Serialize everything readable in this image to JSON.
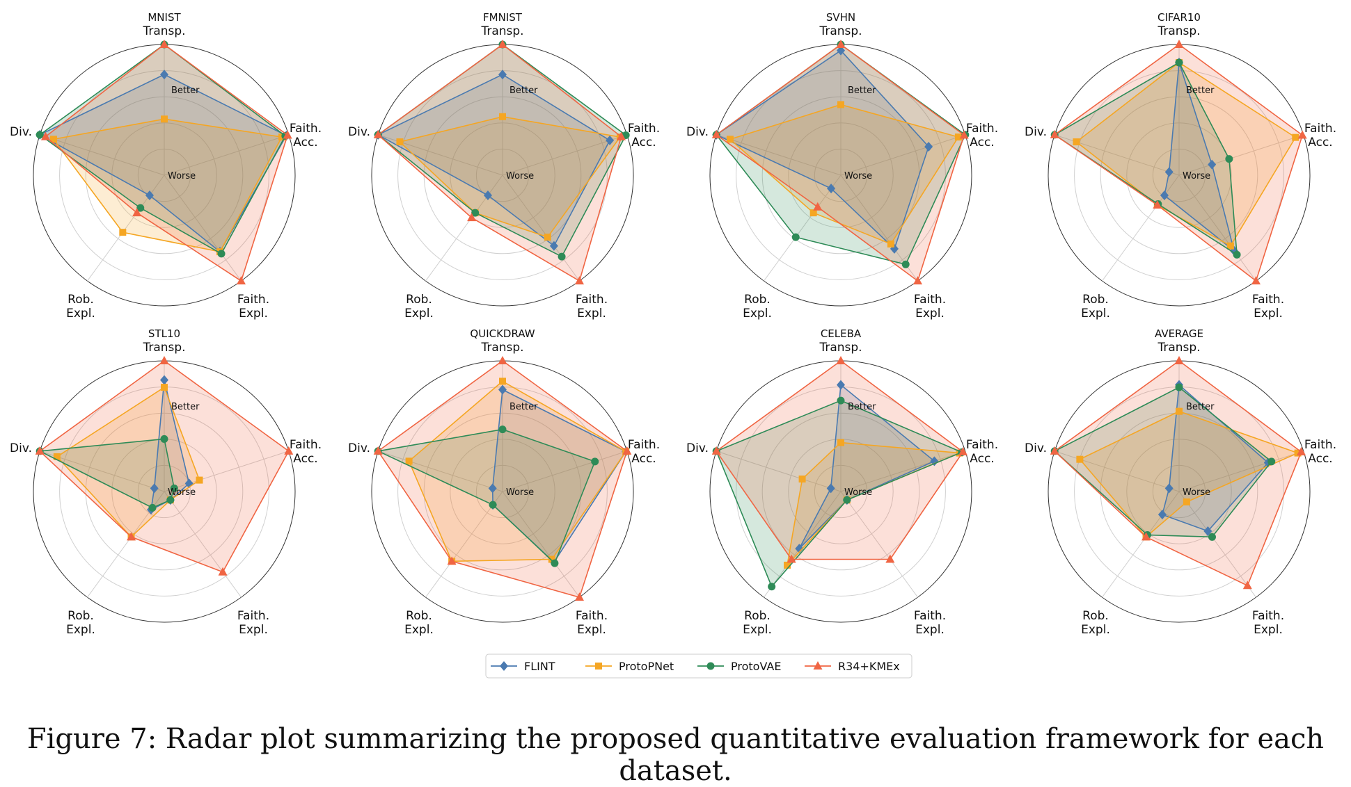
{
  "axes": [
    "Transp.",
    "Faith.\nAcc.",
    "Faith.\nExpl.",
    "Rob.\nExpl.",
    "Div."
  ],
  "better_label": "Better",
  "worse_label": "Worse",
  "series": [
    {
      "name": "FLINT",
      "color": "#4a7ab0",
      "marker": "diamond"
    },
    {
      "name": "ProtoPNet",
      "color": "#f5a623",
      "marker": "square"
    },
    {
      "name": "ProtoVAE",
      "color": "#2e8b57",
      "marker": "circle"
    },
    {
      "name": "R34+KMEx",
      "color": "#f06543",
      "marker": "triangle"
    }
  ],
  "chart_data": [
    {
      "type": "radar",
      "title": "MNIST",
      "range": [
        0,
        1
      ],
      "values": {
        "FLINT": [
          0.75,
          0.98,
          0.7,
          0.12,
          1.0
        ],
        "ProtoPNet": [
          0.38,
          0.94,
          0.7,
          0.5,
          0.88
        ],
        "ProtoVAE": [
          1.0,
          0.97,
          0.72,
          0.25,
          1.0
        ],
        "R34+KMEx": [
          1.0,
          0.99,
          1.0,
          0.3,
          0.95
        ]
      }
    },
    {
      "type": "radar",
      "title": "FMNIST",
      "range": [
        0,
        1
      ],
      "values": {
        "FLINT": [
          0.75,
          0.85,
          0.64,
          0.12,
          1.0
        ],
        "ProtoPNet": [
          0.4,
          0.94,
          0.55,
          0.3,
          0.81
        ],
        "ProtoVAE": [
          1.0,
          0.99,
          0.75,
          0.3,
          1.0
        ],
        "R34+KMEx": [
          1.0,
          0.95,
          1.0,
          0.35,
          1.0
        ]
      }
    },
    {
      "type": "radar",
      "title": "SVHN",
      "range": [
        0,
        1
      ],
      "values": {
        "FLINT": [
          0.95,
          0.68,
          0.67,
          0.05,
          1.0
        ],
        "ProtoPNet": [
          0.5,
          0.94,
          0.62,
          0.3,
          0.88
        ],
        "ProtoVAE": [
          1.0,
          1.0,
          0.83,
          0.55,
          1.0
        ],
        "R34+KMEx": [
          1.0,
          0.99,
          1.0,
          0.24,
          1.0
        ]
      }
    },
    {
      "type": "radar",
      "title": "CIFAR10",
      "range": [
        0,
        1
      ],
      "values": {
        "FLINT": [
          0.85,
          0.2,
          0.69,
          0.12,
          0.0
        ],
        "ProtoPNet": [
          0.85,
          0.93,
          0.64,
          0.22,
          0.81
        ],
        "ProtoVAE": [
          0.85,
          0.35,
          0.73,
          0.21,
          1.0
        ],
        "R34+KMEx": [
          1.0,
          0.99,
          1.0,
          0.22,
          1.0
        ]
      }
    },
    {
      "type": "radar",
      "title": "STL10",
      "range": [
        0,
        1
      ],
      "values": {
        "FLINT": [
          0.84,
          0.13,
          0.0,
          0.1,
          0.0
        ],
        "ProtoPNet": [
          0.78,
          0.22,
          0.0,
          0.38,
          0.85
        ],
        "ProtoVAE": [
          0.35,
          0.0,
          0.0,
          0.08,
          1.0
        ],
        "R34+KMEx": [
          1.0,
          1.0,
          0.74,
          0.38,
          1.0
        ]
      }
    },
    {
      "type": "radar",
      "title": "QUICKDRAW",
      "range": [
        0,
        1
      ],
      "values": {
        "FLINT": [
          0.76,
          0.99,
          0.64,
          0.05,
          0.0
        ],
        "ProtoPNet": [
          0.83,
          0.99,
          0.61,
          0.63,
          0.73
        ],
        "ProtoVAE": [
          0.43,
          0.72,
          0.65,
          0.05,
          1.0
        ],
        "R34+KMEx": [
          1.0,
          1.0,
          1.0,
          0.63,
          1.0
        ]
      }
    },
    {
      "type": "radar",
      "title": "CELEBA",
      "range": [
        0,
        1
      ],
      "values": {
        "FLINT": [
          0.8,
          0.73,
          0.0,
          0.5,
          0.0
        ],
        "ProtoPNet": [
          0.32,
          0.95,
          0.0,
          0.67,
          0.25
        ],
        "ProtoVAE": [
          0.67,
          0.97,
          0.0,
          0.89,
          1.0
        ],
        "R34+KMEx": [
          1.0,
          0.98,
          0.61,
          0.61,
          1.0
        ]
      }
    },
    {
      "type": "radar",
      "title": "AVERAGE",
      "range": [
        0,
        1
      ],
      "values": {
        "FLINT": [
          0.8,
          0.69,
          0.32,
          0.15,
          0.0
        ],
        "ProtoPNet": [
          0.58,
          0.95,
          0.02,
          0.38,
          0.78
        ],
        "ProtoVAE": [
          0.78,
          0.72,
          0.38,
          0.36,
          1.0
        ],
        "R34+KMEx": [
          1.0,
          0.98,
          0.88,
          0.38,
          1.0
        ]
      }
    }
  ],
  "caption": "Figure 7: Radar plot summarizing the proposed quantitative evaluation framework for each dataset."
}
